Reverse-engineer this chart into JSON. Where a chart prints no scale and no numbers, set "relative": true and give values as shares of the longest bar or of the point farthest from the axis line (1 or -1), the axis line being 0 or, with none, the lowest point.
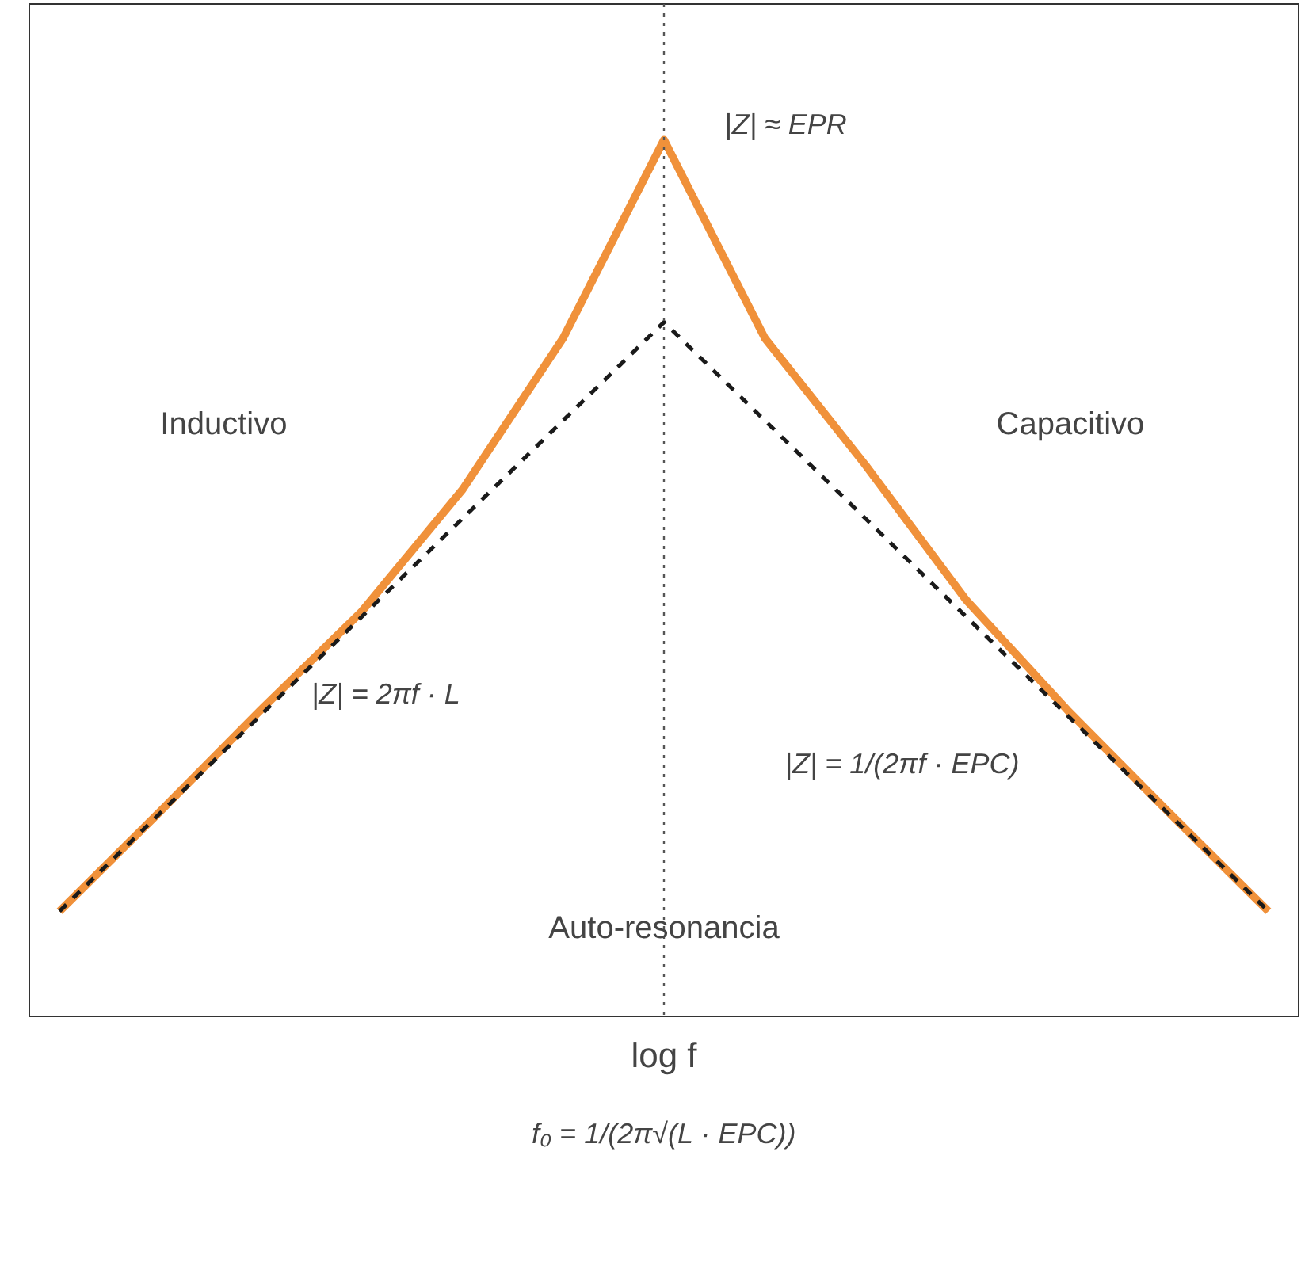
{
  "chart_data": {
    "type": "line",
    "relative": true,
    "xlabel": "log f",
    "grid": false,
    "categories": [
      null,
      null,
      null,
      null,
      null,
      null,
      null,
      null,
      null,
      null,
      null,
      null,
      null
    ],
    "series": [
      {
        "color": "#f0913a",
        "line_style": "solid",
        "values": [
          0.12,
          0.234,
          0.35,
          0.462,
          0.601,
          0.774,
          1,
          0.774,
          0.629,
          0.475,
          0.35,
          0.234,
          0.12
        ]
      },
      {
        "color": "#1a1a1a",
        "line_style": "dashed",
        "values": [
          0.12,
          0.232,
          0.344,
          0.456,
          0.568,
          0.68,
          0.792,
          0.68,
          0.568,
          0.456,
          0.344,
          0.232,
          0.12
        ]
      }
    ],
    "annotations": [
      "|Z| ≈ EPR",
      "Inductivo",
      "Capacitivo",
      "|Z| = 2πf · L",
      "|Z| = 1/(2πf · EPC)",
      "Auto-resonancia",
      "f₀ = 1/(2π√(L · EPC))"
    ]
  }
}
